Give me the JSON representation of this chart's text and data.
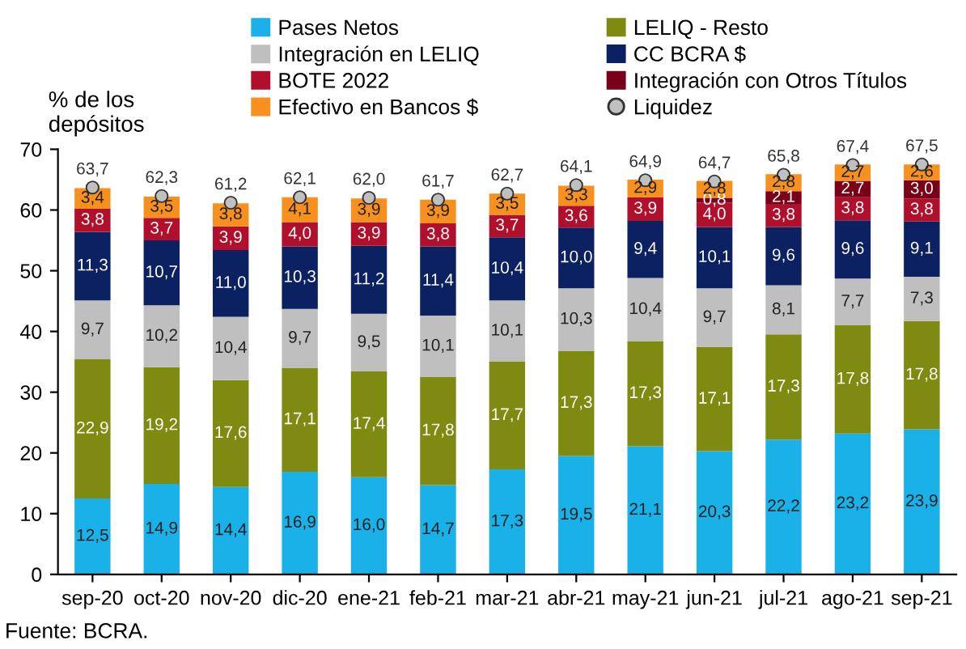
{
  "chart_data": {
    "type": "bar",
    "stacked": true,
    "ylabel": "% de los\ndepósitos",
    "categories": [
      "sep-20",
      "oct-20",
      "nov-20",
      "dic-20",
      "ene-21",
      "feb-21",
      "mar-21",
      "abr-21",
      "may-21",
      "jun-21",
      "jul-21",
      "ago-21",
      "sep-21"
    ],
    "series": [
      {
        "name": "Pases Netos",
        "color": "#1ab0e8",
        "values": [
          12.5,
          14.9,
          14.4,
          16.9,
          16.0,
          14.7,
          17.3,
          19.5,
          21.1,
          20.3,
          22.2,
          23.2,
          23.9
        ],
        "value_labels": [
          "12,5",
          "14,9",
          "14,4",
          "16,9",
          "16,0",
          "14,7",
          "17,3",
          "19,5",
          "21,1",
          "20,3",
          "22,2",
          "23,2",
          "23,9"
        ]
      },
      {
        "name": "LELIQ - Resto",
        "color": "#7f8a10",
        "values": [
          22.9,
          19.2,
          17.6,
          17.1,
          17.4,
          17.8,
          17.7,
          17.3,
          17.3,
          17.1,
          17.3,
          17.8,
          17.8
        ],
        "value_labels": [
          "22,9",
          "19,2",
          "17,6",
          "17,1",
          "17,4",
          "17,8",
          "17,7",
          "17,3",
          "17,3",
          "17,1",
          "17,3",
          "17,8",
          "17,8"
        ]
      },
      {
        "name": "Integración en LELIQ",
        "color": "#bfbfbf",
        "values": [
          9.7,
          10.2,
          10.4,
          9.7,
          9.5,
          10.1,
          10.1,
          10.3,
          10.4,
          9.7,
          8.1,
          7.7,
          7.3
        ],
        "value_labels": [
          "9,7",
          "10,2",
          "10,4",
          "9,7",
          "9,5",
          "10,1",
          "10,1",
          "10,3",
          "10,4",
          "9,7",
          "8,1",
          "7,7",
          "7,3"
        ]
      },
      {
        "name": "CC BCRA $",
        "color": "#0b2162",
        "values": [
          11.3,
          10.7,
          11.0,
          10.3,
          11.2,
          11.4,
          10.4,
          10.0,
          9.4,
          10.1,
          9.6,
          9.6,
          9.1
        ],
        "value_labels": [
          "11,3",
          "10,7",
          "11,0",
          "10,3",
          "11,2",
          "11,4",
          "10,4",
          "10,0",
          "9,4",
          "10,1",
          "9,6",
          "9,6",
          "9,1"
        ]
      },
      {
        "name": "BOTE 2022",
        "color": "#b0102b",
        "values": [
          3.8,
          3.7,
          3.9,
          4.0,
          3.9,
          3.8,
          3.7,
          3.6,
          3.9,
          4.0,
          3.8,
          3.8,
          3.8
        ],
        "value_labels": [
          "3,8",
          "3,7",
          "3,9",
          "4,0",
          "3,9",
          "3,8",
          "3,7",
          "3,6",
          "3,9",
          "4,0",
          "3,8",
          "3,8",
          "3,8"
        ]
      },
      {
        "name": "Integración con Otros Títulos",
        "color": "#7a0019",
        "values": [
          null,
          null,
          null,
          null,
          null,
          null,
          null,
          null,
          null,
          0.8,
          2.1,
          2.7,
          3.0
        ],
        "value_labels": [
          null,
          null,
          null,
          null,
          null,
          null,
          null,
          null,
          null,
          "0,8",
          "2,1",
          "2,7",
          "3,0"
        ]
      },
      {
        "name": "Efectivo en Bancos $",
        "color": "#f7901e",
        "values": [
          3.4,
          3.5,
          3.8,
          4.1,
          3.9,
          3.9,
          3.5,
          3.3,
          2.9,
          2.8,
          2.8,
          2.7,
          2.6
        ],
        "value_labels": [
          "3,4",
          "3,5",
          "3,8",
          "4,1",
          "3,9",
          "3,9",
          "3,5",
          "3,3",
          "2,9",
          "2,8",
          "2,8",
          "2,7",
          "2,6"
        ]
      },
      {
        "name": "Liquidez",
        "type": "scatter",
        "marker": "circle",
        "color": "#c0c0c0",
        "values": [
          63.7,
          62.3,
          61.2,
          62.1,
          62.0,
          61.7,
          62.7,
          64.1,
          64.9,
          64.7,
          65.8,
          67.4,
          67.5
        ],
        "value_labels": [
          "63,7",
          "62,3",
          "61,2",
          "62,1",
          "62,0",
          "61,7",
          "62,7",
          "64,1",
          "64,9",
          "64,7",
          "65,8",
          "67,4",
          "67,5"
        ]
      }
    ],
    "ylim": [
      0,
      70
    ],
    "yticks": [
      0,
      10,
      20,
      30,
      40,
      50,
      60,
      70
    ],
    "grid": false,
    "legend": "top",
    "annotations": [
      "Fuente: BCRA."
    ]
  }
}
